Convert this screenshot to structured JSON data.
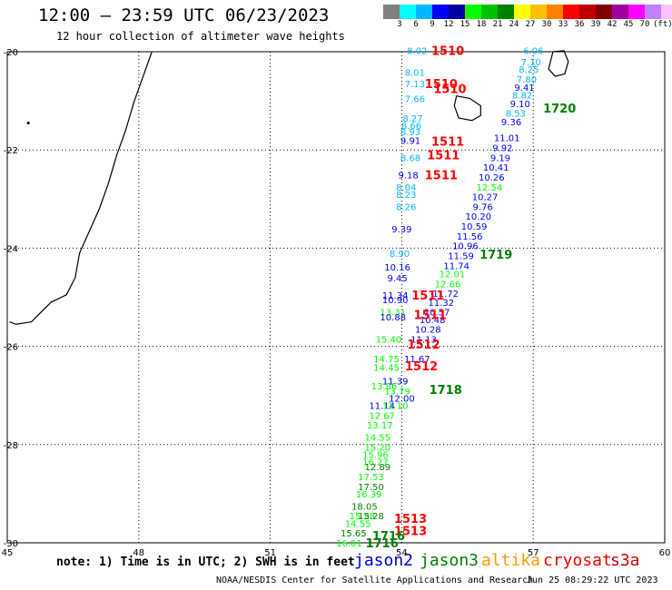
{
  "header": {
    "title": "12:00 – 23:59 UTC 06/23/2023",
    "subtitle": "12 hour collection of altimeter wave heights"
  },
  "legend_scale": {
    "colors": [
      "#808080",
      "#00ffff",
      "#00b8ff",
      "#0000ff",
      "#0000a0",
      "#00ff00",
      "#00c000",
      "#008000",
      "#ffff00",
      "#ffc000",
      "#ff8000",
      "#ff0000",
      "#c00000",
      "#800000",
      "#a000a0",
      "#ff00ff",
      "#c080ff",
      "#ffc0ff",
      "#000000"
    ],
    "labels": [
      "3",
      "6",
      "9",
      "12",
      "15",
      "18",
      "21",
      "24",
      "27",
      "30",
      "33",
      "36",
      "39",
      "42",
      "45",
      "70",
      "(ft)"
    ]
  },
  "map": {
    "lon_range": [
      45,
      60
    ],
    "lat_range": [
      -30,
      -20
    ],
    "x_ticks": [
      "45",
      "48",
      "51",
      "54",
      "57",
      "60"
    ],
    "y_ticks": [
      "-20",
      "-22",
      "-24",
      "-26",
      "-28",
      "-30"
    ]
  },
  "chart_data": {
    "type": "scatter",
    "xlabel": "",
    "ylabel": "",
    "ylim": [
      -30,
      -20
    ],
    "xlim": [
      45,
      60
    ],
    "grid": true,
    "wave_height_labels": [
      {
        "t": "8.02",
        "lon": 54.35,
        "lat": -19.97,
        "c": "#00b8ff"
      },
      {
        "t": "8.01",
        "lon": 54.3,
        "lat": -20.42,
        "c": "#00b8ff"
      },
      {
        "t": "7.13",
        "lon": 54.3,
        "lat": -20.65,
        "c": "#00b8ff"
      },
      {
        "t": "7.66",
        "lon": 54.3,
        "lat": -20.95,
        "c": "#00b8ff"
      },
      {
        "t": "8.27",
        "lon": 54.25,
        "lat": -21.35,
        "c": "#00b8ff"
      },
      {
        "t": "8.66",
        "lon": 54.22,
        "lat": -21.5,
        "c": "#00b8ff"
      },
      {
        "t": "8.93",
        "lon": 54.2,
        "lat": -21.63,
        "c": "#00b8ff"
      },
      {
        "t": "9.91",
        "lon": 54.2,
        "lat": -21.8,
        "c": "#0000ff"
      },
      {
        "t": "8.68",
        "lon": 54.2,
        "lat": -22.15,
        "c": "#00b8ff"
      },
      {
        "t": "9.18",
        "lon": 54.15,
        "lat": -22.5,
        "c": "#0000ff"
      },
      {
        "t": "8.04",
        "lon": 54.1,
        "lat": -22.75,
        "c": "#00b8ff"
      },
      {
        "t": "8.23",
        "lon": 54.1,
        "lat": -22.9,
        "c": "#00b8ff"
      },
      {
        "t": "8.26",
        "lon": 54.1,
        "lat": -23.15,
        "c": "#00b8ff"
      },
      {
        "t": "9.39",
        "lon": 54.0,
        "lat": -23.6,
        "c": "#0000ff"
      },
      {
        "t": "8.90",
        "lon": 53.95,
        "lat": -24.1,
        "c": "#00b8ff"
      },
      {
        "t": "10.16",
        "lon": 53.9,
        "lat": -24.38,
        "c": "#0000ff"
      },
      {
        "t": "9.45",
        "lon": 53.9,
        "lat": -24.6,
        "c": "#0000ff"
      },
      {
        "t": "11.34",
        "lon": 53.85,
        "lat": -24.95,
        "c": "#0000ff"
      },
      {
        "t": "10.90",
        "lon": 53.85,
        "lat": -25.05,
        "c": "#0000ff"
      },
      {
        "t": "13.31",
        "lon": 53.8,
        "lat": -25.3,
        "c": "#00ff00"
      },
      {
        "t": "10.88",
        "lon": 53.8,
        "lat": -25.4,
        "c": "#0000ff"
      },
      {
        "t": "15.40",
        "lon": 53.7,
        "lat": -25.85,
        "c": "#00ff00"
      },
      {
        "t": "14.75",
        "lon": 53.65,
        "lat": -26.25,
        "c": "#00ff00"
      },
      {
        "t": "14.45",
        "lon": 53.65,
        "lat": -26.42,
        "c": "#00ff00"
      },
      {
        "t": "13.86",
        "lon": 53.6,
        "lat": -26.8,
        "c": "#00ff00"
      },
      {
        "t": "13.79",
        "lon": 53.9,
        "lat": -26.9,
        "c": "#00ff00"
      },
      {
        "t": "11.39",
        "lon": 53.85,
        "lat": -26.7,
        "c": "#0000ff"
      },
      {
        "t": "12.00",
        "lon": 54.0,
        "lat": -27.05,
        "c": "#0000ff"
      },
      {
        "t": "11.14",
        "lon": 53.55,
        "lat": -27.2,
        "c": "#0000ff"
      },
      {
        "t": "12.10",
        "lon": 53.85,
        "lat": -27.2,
        "c": "#00ff00"
      },
      {
        "t": "12.67",
        "lon": 53.55,
        "lat": -27.4,
        "c": "#00ff00"
      },
      {
        "t": "13.17",
        "lon": 53.5,
        "lat": -27.6,
        "c": "#00ff00"
      },
      {
        "t": "14.55",
        "lon": 53.45,
        "lat": -27.85,
        "c": "#00ff00"
      },
      {
        "t": "15.20",
        "lon": 53.45,
        "lat": -28.05,
        "c": "#00ff00"
      },
      {
        "t": "15.96",
        "lon": 53.4,
        "lat": -28.2,
        "c": "#00ff00"
      },
      {
        "t": "16.27",
        "lon": 53.4,
        "lat": -28.35,
        "c": "#00ff00"
      },
      {
        "t": "12.89",
        "lon": 53.45,
        "lat": -28.45,
        "c": "#008000"
      },
      {
        "t": "17.53",
        "lon": 53.3,
        "lat": -28.65,
        "c": "#00ff00"
      },
      {
        "t": "17.50",
        "lon": 53.3,
        "lat": -28.85,
        "c": "#008000"
      },
      {
        "t": "16.39",
        "lon": 53.25,
        "lat": -29.0,
        "c": "#00ff00"
      },
      {
        "t": "18.05",
        "lon": 53.15,
        "lat": -29.25,
        "c": "#008000"
      },
      {
        "t": "15.28",
        "lon": 53.1,
        "lat": -29.45,
        "c": "#00ff00"
      },
      {
        "t": "15.28",
        "lon": 53.3,
        "lat": -29.45,
        "c": "#008000"
      },
      {
        "t": "14.55",
        "lon": 53.0,
        "lat": -29.6,
        "c": "#00ff00"
      },
      {
        "t": "15.65",
        "lon": 52.9,
        "lat": -29.8,
        "c": "#008000"
      },
      {
        "t": "16.01",
        "lon": 52.8,
        "lat": -30.0,
        "c": "#00ff00"
      },
      {
        "t": "6.06",
        "lon": 57.0,
        "lat": -19.97,
        "c": "#00b8ff"
      },
      {
        "t": "7.10",
        "lon": 56.95,
        "lat": -20.2,
        "c": "#00b8ff"
      },
      {
        "t": "8.25",
        "lon": 56.9,
        "lat": -20.35,
        "c": "#00b8ff"
      },
      {
        "t": "7.80",
        "lon": 56.85,
        "lat": -20.55,
        "c": "#00b8ff"
      },
      {
        "t": "9.41",
        "lon": 56.8,
        "lat": -20.72,
        "c": "#0000ff"
      },
      {
        "t": "8.82",
        "lon": 56.75,
        "lat": -20.88,
        "c": "#00b8ff"
      },
      {
        "t": "9.10",
        "lon": 56.7,
        "lat": -21.05,
        "c": "#0000ff"
      },
      {
        "t": "8.53",
        "lon": 56.6,
        "lat": -21.25,
        "c": "#00b8ff"
      },
      {
        "t": "9.36",
        "lon": 56.5,
        "lat": -21.42,
        "c": "#0000ff"
      },
      {
        "t": "11.01",
        "lon": 56.4,
        "lat": -21.75,
        "c": "#0000ff"
      },
      {
        "t": "9.92",
        "lon": 56.3,
        "lat": -21.95,
        "c": "#0000ff"
      },
      {
        "t": "9.19",
        "lon": 56.25,
        "lat": -22.15,
        "c": "#0000ff"
      },
      {
        "t": "10.41",
        "lon": 56.15,
        "lat": -22.35,
        "c": "#0000ff"
      },
      {
        "t": "10.26",
        "lon": 56.05,
        "lat": -22.55,
        "c": "#0000ff"
      },
      {
        "t": "12.54",
        "lon": 56.0,
        "lat": -22.75,
        "c": "#00ff00"
      },
      {
        "t": "10.27",
        "lon": 55.9,
        "lat": -22.95,
        "c": "#0000ff"
      },
      {
        "t": "9.76",
        "lon": 55.85,
        "lat": -23.15,
        "c": "#0000ff"
      },
      {
        "t": "10.20",
        "lon": 55.75,
        "lat": -23.35,
        "c": "#0000ff"
      },
      {
        "t": "10.59",
        "lon": 55.65,
        "lat": -23.55,
        "c": "#0000ff"
      },
      {
        "t": "11.56",
        "lon": 55.55,
        "lat": -23.75,
        "c": "#0000ff"
      },
      {
        "t": "10.96",
        "lon": 55.45,
        "lat": -23.95,
        "c": "#0000ff"
      },
      {
        "t": "11.59",
        "lon": 55.35,
        "lat": -24.15,
        "c": "#0000ff"
      },
      {
        "t": "11.74",
        "lon": 55.25,
        "lat": -24.35,
        "c": "#0000ff"
      },
      {
        "t": "12.01",
        "lon": 55.15,
        "lat": -24.52,
        "c": "#00ff00"
      },
      {
        "t": "12.66",
        "lon": 55.05,
        "lat": -24.72,
        "c": "#00ff00"
      },
      {
        "t": "11.72",
        "lon": 55.0,
        "lat": -24.92,
        "c": "#0000ff"
      },
      {
        "t": "11.32",
        "lon": 54.9,
        "lat": -25.1,
        "c": "#0000ff"
      },
      {
        "t": "10.57",
        "lon": 54.8,
        "lat": -25.3,
        "c": "#0000ff"
      },
      {
        "t": "10.48",
        "lon": 54.7,
        "lat": -25.45,
        "c": "#0000ff"
      },
      {
        "t": "10.28",
        "lon": 54.6,
        "lat": -25.65,
        "c": "#0000ff"
      },
      {
        "t": "11.13",
        "lon": 54.5,
        "lat": -25.85,
        "c": "#0000ff"
      },
      {
        "t": "11.67",
        "lon": 54.35,
        "lat": -26.25,
        "c": "#0000ff"
      }
    ],
    "pass_time_labels": [
      {
        "t": "1510",
        "lon": 55.05,
        "lat": -19.97,
        "c": "#ff0000"
      },
      {
        "t": "1510",
        "lon": 54.9,
        "lat": -20.65,
        "c": "#ff0000"
      },
      {
        "t": "1510",
        "lon": 55.1,
        "lat": -20.75,
        "c": "#ff0000"
      },
      {
        "t": "1511",
        "lon": 55.05,
        "lat": -21.82,
        "c": "#ff0000"
      },
      {
        "t": "1511",
        "lon": 54.95,
        "lat": -22.1,
        "c": "#ff0000"
      },
      {
        "t": "1511",
        "lon": 54.9,
        "lat": -22.5,
        "c": "#ff0000"
      },
      {
        "t": "1511",
        "lon": 54.6,
        "lat": -24.95,
        "c": "#ff0000"
      },
      {
        "t": "1511",
        "lon": 54.65,
        "lat": -25.35,
        "c": "#ff0000"
      },
      {
        "t": "1512",
        "lon": 54.5,
        "lat": -25.95,
        "c": "#ff0000"
      },
      {
        "t": "1512",
        "lon": 54.45,
        "lat": -26.4,
        "c": "#ff0000"
      },
      {
        "t": "1513",
        "lon": 54.2,
        "lat": -29.5,
        "c": "#ff0000"
      },
      {
        "t": "1513",
        "lon": 54.2,
        "lat": -29.75,
        "c": "#ff0000"
      },
      {
        "t": "1716",
        "lon": 53.7,
        "lat": -29.85,
        "c": "#008000"
      },
      {
        "t": "1716",
        "lon": 53.55,
        "lat": -30.0,
        "c": "#008000"
      },
      {
        "t": "1720",
        "lon": 57.6,
        "lat": -21.15,
        "c": "#008000"
      },
      {
        "t": "1719",
        "lon": 56.15,
        "lat": -24.12,
        "c": "#008000"
      },
      {
        "t": "1718",
        "lon": 55.0,
        "lat": -26.88,
        "c": "#008000"
      }
    ]
  },
  "satellites": [
    {
      "name": "jason2",
      "color": "#0000cc"
    },
    {
      "name": "jason3",
      "color": "#008000"
    },
    {
      "name": "altika",
      "color": "#ff9900"
    },
    {
      "name": "cryosat",
      "color": "#ee0000"
    },
    {
      "name": "s3a",
      "color": "#cc0000"
    }
  ],
  "note": "note: 1) Time is in UTC; 2) SWH is in feet",
  "footer": {
    "credit": "NOAA/NESDIS Center for Satellite Applications and Research",
    "timestamp": "Jun 25 08:29:22 UTC 2023"
  }
}
